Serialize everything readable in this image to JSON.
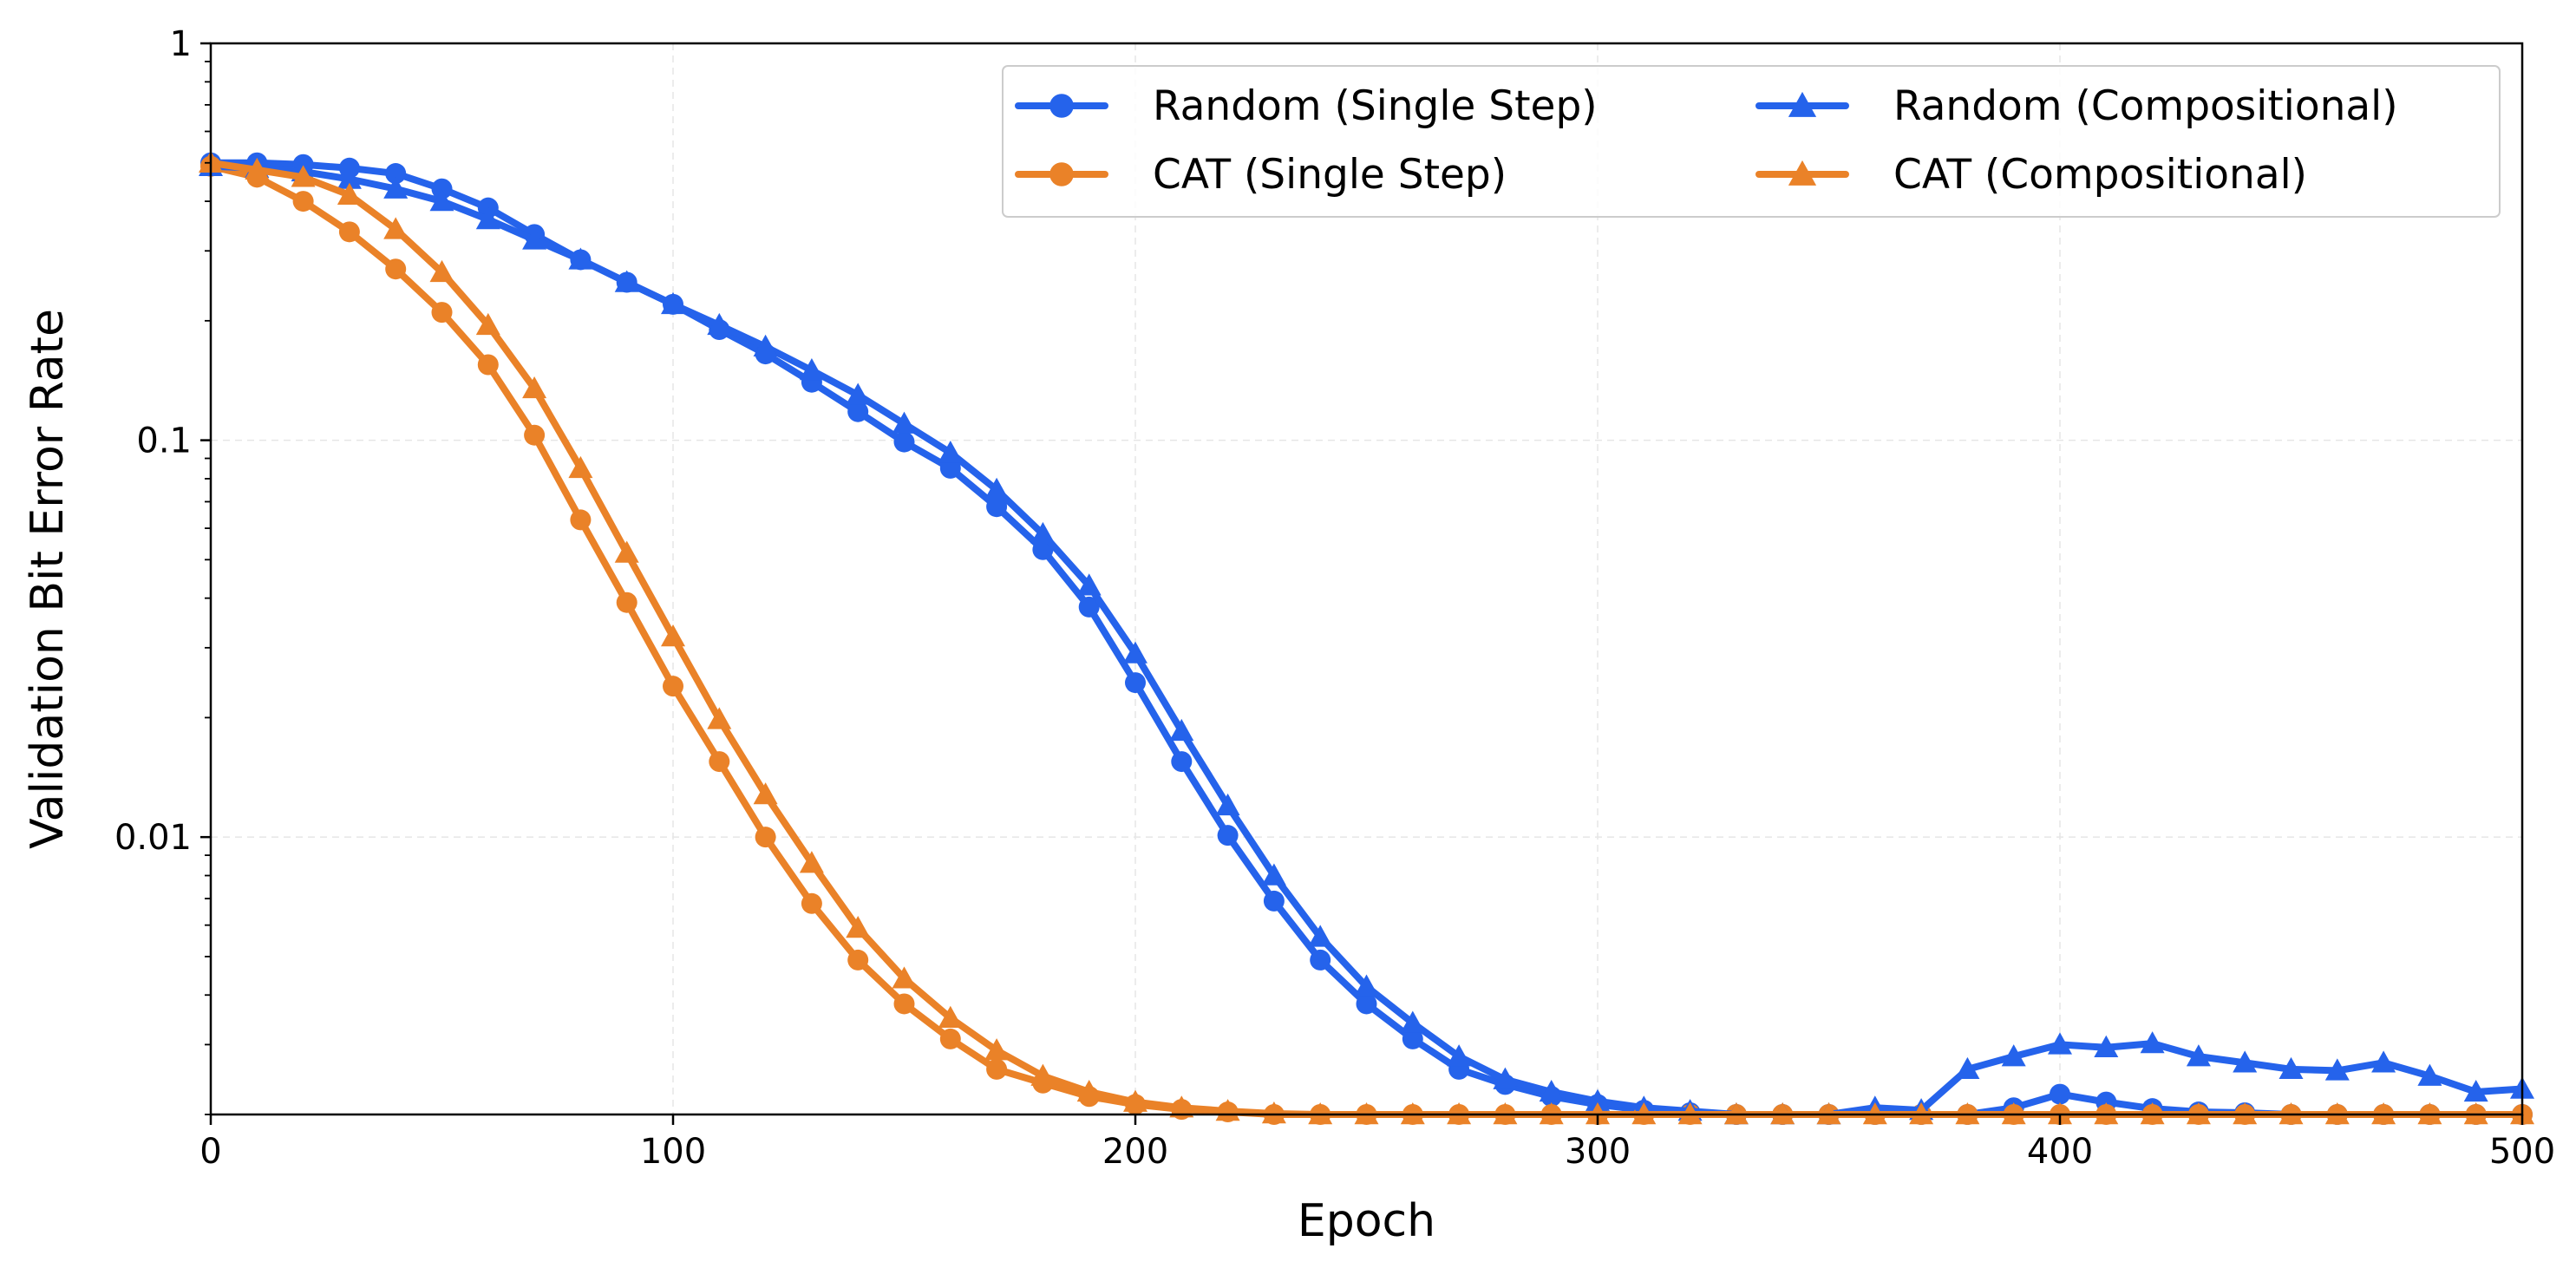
{
  "chart_data": {
    "type": "line",
    "xlabel": "Epoch",
    "ylabel": "Validation Bit Error Rate",
    "xlim": [
      0,
      500
    ],
    "ylim": [
      0.002,
      1
    ],
    "yscale": "log",
    "xticks": [
      0,
      100,
      200,
      300,
      400,
      500
    ],
    "xtick_labels": [
      "0",
      "100",
      "200",
      "300",
      "400",
      "500"
    ],
    "yticks": [
      0.01,
      0.1,
      1
    ],
    "ytick_labels": [
      "0.01",
      "0.1",
      "1"
    ],
    "grid": true,
    "legend_position": "top-right",
    "legend_columns": 2,
    "x": [
      0,
      10,
      20,
      30,
      40,
      50,
      60,
      70,
      80,
      90,
      100,
      110,
      120,
      130,
      140,
      150,
      160,
      170,
      180,
      190,
      200,
      210,
      220,
      230,
      240,
      250,
      260,
      270,
      280,
      290,
      300,
      310,
      320,
      330,
      340,
      350,
      360,
      370,
      380,
      390,
      400,
      410,
      420,
      430,
      440,
      450,
      460,
      470,
      480,
      490,
      500
    ],
    "series": [
      {
        "name": "Random (Single Step)",
        "color": "#2563eb",
        "marker": "circle",
        "values": [
          0.5,
          0.5,
          0.495,
          0.485,
          0.47,
          0.43,
          0.385,
          0.33,
          0.285,
          0.25,
          0.22,
          0.19,
          0.165,
          0.14,
          0.118,
          0.099,
          0.085,
          0.068,
          0.053,
          0.038,
          0.0245,
          0.0155,
          0.0101,
          0.0069,
          0.0049,
          0.0038,
          0.0031,
          0.0026,
          0.00238,
          0.00222,
          0.00212,
          0.00205,
          0.00202,
          0.002,
          0.002,
          0.002,
          0.002,
          0.002,
          0.002,
          0.00208,
          0.00225,
          0.00215,
          0.00207,
          0.00203,
          0.00202,
          0.002,
          0.002,
          0.002,
          0.002,
          0.002,
          0.002
        ]
      },
      {
        "name": "CAT (Single Step)",
        "color": "#ea8228",
        "marker": "circle",
        "values": [
          0.49,
          0.46,
          0.4,
          0.335,
          0.27,
          0.21,
          0.155,
          0.103,
          0.063,
          0.039,
          0.024,
          0.0155,
          0.01,
          0.0068,
          0.0049,
          0.0038,
          0.0031,
          0.0026,
          0.0024,
          0.00222,
          0.00212,
          0.00206,
          0.00203,
          0.002,
          0.002,
          0.002,
          0.002,
          0.002,
          0.002,
          0.002,
          0.002,
          0.002,
          0.002,
          0.002,
          0.002,
          0.002,
          0.002,
          0.002,
          0.002,
          0.002,
          0.002,
          0.002,
          0.002,
          0.002,
          0.002,
          0.002,
          0.002,
          0.002,
          0.002,
          0.002,
          0.002
        ]
      },
      {
        "name": "Random (Compositional)",
        "color": "#2563eb",
        "marker": "triangle",
        "values": [
          0.49,
          0.485,
          0.475,
          0.455,
          0.43,
          0.4,
          0.36,
          0.32,
          0.285,
          0.25,
          0.22,
          0.195,
          0.172,
          0.15,
          0.13,
          0.11,
          0.093,
          0.075,
          0.058,
          0.043,
          0.029,
          0.0185,
          0.012,
          0.008,
          0.0056,
          0.0042,
          0.0034,
          0.0028,
          0.00245,
          0.00228,
          0.00216,
          0.00208,
          0.00204,
          0.002,
          0.002,
          0.002,
          0.00208,
          0.00205,
          0.0026,
          0.0028,
          0.003,
          0.00295,
          0.00302,
          0.0028,
          0.0027,
          0.0026,
          0.00258,
          0.0027,
          0.0025,
          0.00228,
          0.00232
        ]
      },
      {
        "name": "CAT (Compositional)",
        "color": "#ea8228",
        "marker": "triangle",
        "values": [
          0.5,
          0.48,
          0.46,
          0.415,
          0.34,
          0.265,
          0.195,
          0.135,
          0.085,
          0.052,
          0.032,
          0.0198,
          0.0128,
          0.0086,
          0.0059,
          0.0044,
          0.0035,
          0.0029,
          0.0025,
          0.00228,
          0.00215,
          0.00208,
          0.00204,
          0.00201,
          0.002,
          0.002,
          0.002,
          0.002,
          0.002,
          0.002,
          0.002,
          0.002,
          0.002,
          0.002,
          0.002,
          0.002,
          0.002,
          0.002,
          0.002,
          0.002,
          0.002,
          0.002,
          0.002,
          0.002,
          0.002,
          0.002,
          0.002,
          0.002,
          0.002,
          0.002,
          0.002
        ]
      }
    ]
  }
}
